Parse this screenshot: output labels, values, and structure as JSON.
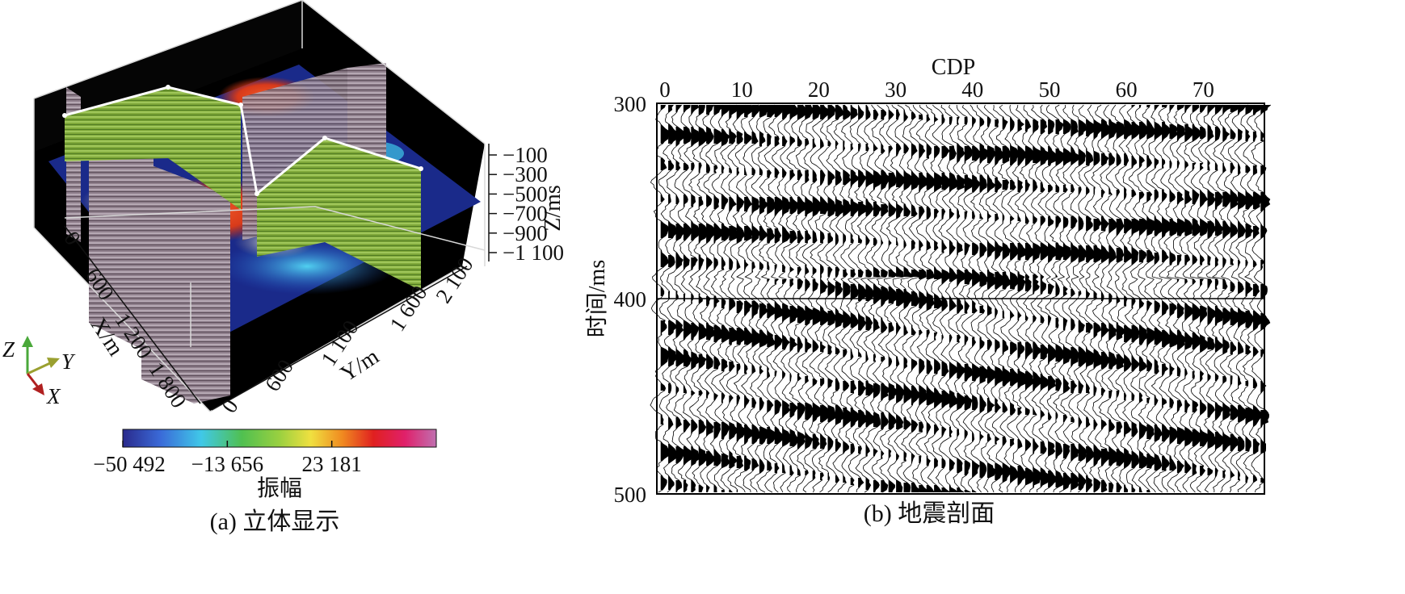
{
  "panel_a": {
    "caption": "(a) 立体显示",
    "z_axis": {
      "title": "Z/ms",
      "ticks": [
        "−100",
        "−300",
        "−500",
        "−700",
        "−900",
        "−1 100"
      ]
    },
    "x_axis": {
      "title": "X/m",
      "ticks": [
        "0",
        "600",
        "1 200",
        "1 800"
      ]
    },
    "y_axis": {
      "title": "Y/m",
      "ticks": [
        "0",
        "600",
        "1 100",
        "1 600",
        "2 100"
      ]
    },
    "orientation": {
      "z": "Z",
      "y": "Y",
      "x": "X"
    },
    "colorbar": {
      "title": "振幅",
      "tick_labels": [
        "−50 492",
        "−13 656",
        "23 181"
      ],
      "tick_values": [
        -50492,
        -13656,
        23181
      ],
      "range": [
        -50492,
        60018
      ],
      "colors": [
        "#2a2a8c",
        "#3a6ad8",
        "#40c8e8",
        "#50c050",
        "#9ad040",
        "#f0e040",
        "#f08a20",
        "#e02020",
        "#e0206a",
        "#c070b0"
      ]
    },
    "colors": {
      "box_background": "#000000",
      "slice_green": "#7fa83a",
      "slice_purple": "#9a8a95"
    }
  },
  "panel_b": {
    "caption": "(b) 地震剖面",
    "x_axis": {
      "title": "CDP",
      "ticks": [
        "0",
        "10",
        "20",
        "30",
        "40",
        "50",
        "60",
        "70"
      ],
      "range": [
        0,
        79
      ]
    },
    "y_axis": {
      "title": "时间/ms",
      "ticks": [
        "300",
        "400",
        "500"
      ],
      "range": [
        300,
        500
      ]
    }
  }
}
